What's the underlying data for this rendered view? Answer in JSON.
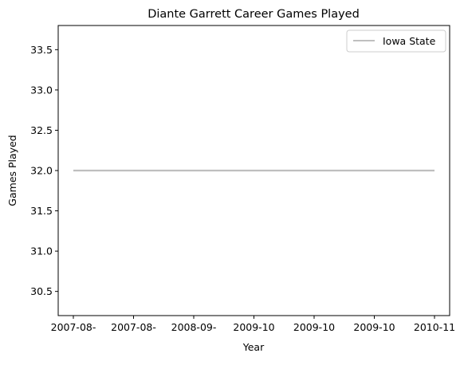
{
  "chart_data": {
    "type": "line",
    "title": "Diante Garrett Career Games Played",
    "xlabel": "Year",
    "ylabel": "Games Played",
    "categories": [
      "2007-08-",
      "2007-08-",
      "2008-09-",
      "2009-10",
      "2009-10",
      "2009-10",
      "2010-11"
    ],
    "series": [
      {
        "name": "Iowa State",
        "values": [
          32,
          32,
          32,
          32,
          32,
          32,
          32
        ],
        "color": "#bfbfbf"
      }
    ],
    "ylim": [
      30.2,
      33.8
    ],
    "yticks": [
      30.5,
      31.0,
      31.5,
      32.0,
      32.5,
      33.0,
      33.5
    ],
    "grid": false,
    "legend": "top-right"
  }
}
